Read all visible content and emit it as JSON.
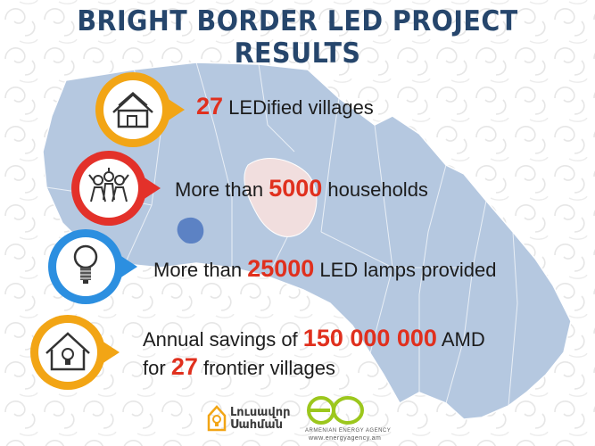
{
  "title": "BRIGHT BORDER LED PROJECT RESULTS",
  "items": [
    {
      "icon": "house-icon",
      "ring_color": "#f2a515",
      "num": "27",
      "text": "LEDified villages"
    },
    {
      "icon": "people-icon",
      "ring_color": "#e3312a",
      "pre": "More than",
      "num": "5000",
      "text": "households"
    },
    {
      "icon": "lightbulb-icon",
      "ring_color": "#2c8fe0",
      "pre": "More than",
      "num": "25000",
      "text": "LED lamps provided"
    },
    {
      "icon": "house-lightbulb-icon",
      "ring_color": "#f2a515",
      "pre": "Annual savings of",
      "num": "150 000 000",
      "post": "AMD",
      "pre2": "for",
      "num2": "27",
      "post2": "frontier villages"
    }
  ],
  "logos": {
    "left_line1": "Լուսավոր",
    "left_line2": "Սահման",
    "right_line1": "ARMENIAN ENERGY AGENCY",
    "right_line2": "www.energyagency.am"
  },
  "colors": {
    "title": "#26466c",
    "highlight": "#e0301e",
    "map": "#b5c8e0",
    "lake": "#f1dede",
    "accent_lake": "#5c82c4"
  }
}
